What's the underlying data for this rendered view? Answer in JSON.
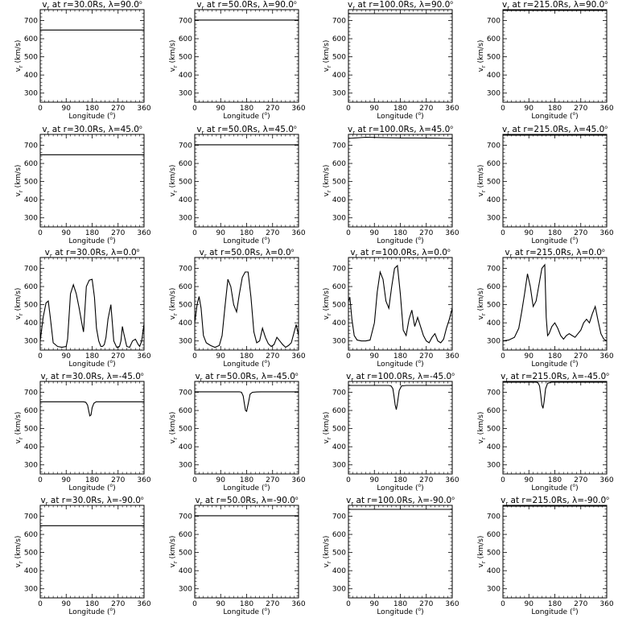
{
  "chart_data": [
    {
      "type": "line",
      "title": "v_r at r=30.0Rs, λ=90.0°",
      "r": "30.0Rs",
      "lat": "90.0°",
      "xlabel": "Longitude (°)",
      "ylabel": "v_r (km/s)",
      "xlim": [
        0,
        360
      ],
      "ylim": [
        250,
        760
      ],
      "xticks": [
        0,
        90,
        180,
        270,
        360
      ],
      "yticks": [
        300,
        400,
        500,
        600,
        700
      ],
      "x": [
        0,
        360
      ],
      "y": [
        648,
        648
      ]
    },
    {
      "type": "line",
      "title": "v_r at r=50.0Rs, λ=90.0°",
      "r": "50.0Rs",
      "lat": "90.0°",
      "xlabel": "Longitude (°)",
      "ylabel": "v_r (km/s)",
      "xlim": [
        0,
        360
      ],
      "ylim": [
        250,
        760
      ],
      "xticks": [
        0,
        90,
        180,
        270,
        360
      ],
      "yticks": [
        300,
        400,
        500,
        600,
        700
      ],
      "x": [
        0,
        360
      ],
      "y": [
        703,
        703
      ]
    },
    {
      "type": "line",
      "title": "v_r at r=100.0Rs, λ=90.0°",
      "r": "100.0Rs",
      "lat": "90.0°",
      "xlabel": "Longitude (°)",
      "ylabel": "v_r (km/s)",
      "xlim": [
        0,
        360
      ],
      "ylim": [
        250,
        760
      ],
      "xticks": [
        0,
        90,
        180,
        270,
        360
      ],
      "yticks": [
        300,
        400,
        500,
        600,
        700
      ],
      "x": [
        0,
        360
      ],
      "y": [
        738,
        738
      ]
    },
    {
      "type": "line",
      "title": "v_r at r=215.0Rs, λ=90.0°",
      "r": "215.0Rs",
      "lat": "90.0°",
      "xlabel": "Longitude (°)",
      "ylabel": "v_r (km/s)",
      "xlim": [
        0,
        360
      ],
      "ylim": [
        250,
        760
      ],
      "xticks": [
        0,
        90,
        180,
        270,
        360
      ],
      "yticks": [
        300,
        400,
        500,
        600,
        700
      ],
      "x": [
        0,
        360
      ],
      "y": [
        756,
        756
      ]
    },
    {
      "type": "line",
      "title": "v_r at r=30.0Rs, λ=45.0°",
      "r": "30.0Rs",
      "lat": "45.0°",
      "xlabel": "Longitude (°)",
      "ylabel": "v_r (km/s)",
      "xlim": [
        0,
        360
      ],
      "ylim": [
        250,
        760
      ],
      "xticks": [
        0,
        90,
        180,
        270,
        360
      ],
      "yticks": [
        300,
        400,
        500,
        600,
        700
      ],
      "x": [
        0,
        360
      ],
      "y": [
        648,
        648
      ]
    },
    {
      "type": "line",
      "title": "v_r at r=50.0Rs, λ=45.0°",
      "r": "50.0Rs",
      "lat": "45.0°",
      "xlabel": "Longitude (°)",
      "ylabel": "v_r (km/s)",
      "xlim": [
        0,
        360
      ],
      "ylim": [
        250,
        760
      ],
      "xticks": [
        0,
        90,
        180,
        270,
        360
      ],
      "yticks": [
        300,
        400,
        500,
        600,
        700
      ],
      "x": [
        0,
        360
      ],
      "y": [
        703,
        703
      ]
    },
    {
      "type": "line",
      "title": "v_r at r=100.0Rs, λ=45.0°",
      "r": "100.0Rs",
      "lat": "45.0°",
      "xlabel": "Longitude (°)",
      "ylabel": "v_r (km/s)",
      "xlim": [
        0,
        360
      ],
      "ylim": [
        250,
        760
      ],
      "xticks": [
        0,
        90,
        180,
        270,
        360
      ],
      "yticks": [
        300,
        400,
        500,
        600,
        700
      ],
      "x": [
        0,
        60,
        120,
        180,
        240,
        300,
        360
      ],
      "y": [
        738,
        744,
        742,
        740,
        740,
        739,
        738
      ]
    },
    {
      "type": "line",
      "title": "v_r at r=215.0Rs, λ=45.0°",
      "r": "215.0Rs",
      "lat": "45.0°",
      "xlabel": "Longitude (°)",
      "ylabel": "v_r (km/s)",
      "xlim": [
        0,
        360
      ],
      "ylim": [
        250,
        760
      ],
      "xticks": [
        0,
        90,
        180,
        270,
        360
      ],
      "yticks": [
        300,
        400,
        500,
        600,
        700
      ],
      "x": [
        0,
        360
      ],
      "y": [
        756,
        756
      ]
    },
    {
      "type": "line",
      "title": "v_r at r=30.0Rs, λ=0.0°",
      "r": "30.0Rs",
      "lat": "0.0°",
      "xlabel": "Longitude (°)",
      "ylabel": "v_r (km/s)",
      "xlim": [
        0,
        360
      ],
      "ylim": [
        250,
        760
      ],
      "xticks": [
        0,
        90,
        180,
        270,
        360
      ],
      "yticks": [
        300,
        400,
        500,
        600,
        700
      ],
      "x": [
        0,
        10,
        20,
        28,
        35,
        45,
        60,
        75,
        90,
        95,
        105,
        115,
        125,
        135,
        145,
        150,
        160,
        170,
        180,
        188,
        195,
        203,
        210,
        216,
        222,
        228,
        235,
        245,
        255,
        265,
        270,
        275,
        280,
        285,
        290,
        300,
        310,
        320,
        330,
        340,
        345,
        352,
        360
      ],
      "y": [
        300,
        430,
        510,
        520,
        430,
        290,
        270,
        265,
        270,
        310,
        560,
        610,
        560,
        480,
        390,
        350,
        600,
        635,
        640,
        540,
        370,
        300,
        270,
        270,
        280,
        320,
        420,
        500,
        300,
        265,
        265,
        270,
        300,
        380,
        340,
        270,
        265,
        300,
        310,
        280,
        270,
        300,
        395
      ]
    },
    {
      "type": "line",
      "title": "v_r at r=50.0Rs, λ=0.0°",
      "r": "50.0Rs",
      "lat": "0.0°",
      "xlabel": "Longitude (°)",
      "ylabel": "v_r (km/s)",
      "xlim": [
        0,
        360
      ],
      "ylim": [
        250,
        760
      ],
      "xticks": [
        0,
        90,
        180,
        270,
        360
      ],
      "yticks": [
        300,
        400,
        500,
        600,
        700
      ],
      "x": [
        0,
        8,
        15,
        22,
        30,
        40,
        55,
        70,
        85,
        95,
        105,
        115,
        125,
        135,
        145,
        155,
        165,
        175,
        185,
        195,
        205,
        215,
        225,
        235,
        245,
        255,
        265,
        275,
        285,
        295,
        305,
        315,
        325,
        335,
        345,
        352,
        360
      ],
      "y": [
        400,
        500,
        545,
        480,
        330,
        290,
        275,
        265,
        275,
        330,
        490,
        640,
        600,
        500,
        460,
        560,
        650,
        680,
        680,
        540,
        350,
        290,
        300,
        370,
        320,
        285,
        270,
        280,
        320,
        300,
        280,
        265,
        275,
        290,
        350,
        390,
        330
      ]
    },
    {
      "type": "line",
      "title": "v_r at r=100.0Rs, λ=0.0°",
      "r": "100.0Rs",
      "lat": "0.0°",
      "xlabel": "Longitude (°)",
      "ylabel": "v_r (km/s)",
      "xlim": [
        0,
        360
      ],
      "ylim": [
        250,
        760
      ],
      "xticks": [
        0,
        90,
        180,
        270,
        360
      ],
      "yticks": [
        300,
        400,
        500,
        600,
        700
      ],
      "x": [
        0,
        5,
        12,
        20,
        30,
        45,
        60,
        75,
        90,
        100,
        110,
        120,
        130,
        140,
        150,
        160,
        170,
        180,
        190,
        200,
        210,
        220,
        230,
        240,
        250,
        260,
        270,
        280,
        290,
        300,
        310,
        320,
        330,
        340,
        350,
        360
      ],
      "y": [
        520,
        540,
        420,
        330,
        305,
        300,
        300,
        305,
        400,
        570,
        680,
        640,
        520,
        480,
        600,
        700,
        715,
        560,
        360,
        330,
        420,
        470,
        380,
        430,
        380,
        330,
        300,
        290,
        320,
        340,
        300,
        290,
        310,
        370,
        420,
        480
      ]
    },
    {
      "type": "line",
      "title": "v_r at r=215.0Rs, λ=0.0°",
      "r": "215.0Rs",
      "lat": "0.0°",
      "xlabel": "Longitude (°)",
      "ylabel": "v_r (km/s)",
      "xlim": [
        0,
        360
      ],
      "ylim": [
        250,
        760
      ],
      "xticks": [
        0,
        90,
        180,
        270,
        360
      ],
      "yticks": [
        300,
        400,
        500,
        600,
        700
      ],
      "x": [
        0,
        20,
        40,
        55,
        65,
        75,
        85,
        95,
        105,
        115,
        125,
        135,
        145,
        150,
        155,
        160,
        170,
        180,
        190,
        200,
        210,
        220,
        230,
        240,
        250,
        260,
        270,
        280,
        290,
        300,
        310,
        320,
        330,
        340,
        350,
        360
      ],
      "y": [
        300,
        305,
        320,
        370,
        460,
        560,
        670,
        600,
        490,
        520,
        610,
        700,
        720,
        430,
        330,
        340,
        380,
        400,
        370,
        330,
        310,
        330,
        340,
        330,
        320,
        340,
        360,
        400,
        420,
        400,
        450,
        490,
        410,
        340,
        310,
        300
      ]
    },
    {
      "type": "line",
      "title": "v_r at r=30.0Rs, λ=-45.0°",
      "r": "30.0Rs",
      "lat": "-45.0°",
      "xlabel": "Longitude (°)",
      "ylabel": "v_r (km/s)",
      "xlim": [
        0,
        360
      ],
      "ylim": [
        250,
        760
      ],
      "xticks": [
        0,
        90,
        180,
        270,
        360
      ],
      "yticks": [
        300,
        400,
        500,
        600,
        700
      ],
      "x": [
        0,
        150,
        158,
        164,
        168,
        172,
        176,
        180,
        186,
        194,
        210,
        360
      ],
      "y": [
        648,
        648,
        645,
        630,
        600,
        570,
        575,
        615,
        640,
        648,
        648,
        648
      ]
    },
    {
      "type": "line",
      "title": "v_r at r=50.0Rs, λ=-45.0°",
      "r": "50.0Rs",
      "lat": "-45.0°",
      "xlabel": "Longitude (°)",
      "ylabel": "v_r (km/s)",
      "xlim": [
        0,
        360
      ],
      "ylim": [
        250,
        760
      ],
      "xticks": [
        0,
        90,
        180,
        270,
        360
      ],
      "yticks": [
        300,
        400,
        500,
        600,
        700
      ],
      "x": [
        0,
        155,
        162,
        168,
        172,
        176,
        180,
        186,
        192,
        200,
        215,
        230,
        360
      ],
      "y": [
        703,
        703,
        700,
        680,
        640,
        600,
        595,
        640,
        690,
        700,
        702,
        703,
        703
      ]
    },
    {
      "type": "line",
      "title": "v_r at r=100.0Rs, λ=-45.0°",
      "r": "100.0Rs",
      "lat": "-45.0°",
      "xlabel": "Longitude (°)",
      "ylabel": "v_r (km/s)",
      "xlim": [
        0,
        360
      ],
      "ylim": [
        250,
        760
      ],
      "xticks": [
        0,
        90,
        180,
        270,
        360
      ],
      "yticks": [
        300,
        400,
        500,
        600,
        700
      ],
      "x": [
        0,
        140,
        148,
        154,
        158,
        162,
        166,
        170,
        176,
        184,
        200,
        360
      ],
      "y": [
        738,
        738,
        735,
        720,
        680,
        630,
        605,
        640,
        710,
        735,
        738,
        738
      ]
    },
    {
      "type": "line",
      "title": "v_r at r=215.0Rs, λ=-45.0°",
      "r": "215.0Rs",
      "lat": "-45.0°",
      "xlabel": "Longitude (°)",
      "ylabel": "v_r (km/s)",
      "xlim": [
        0,
        360
      ],
      "ylim": [
        250,
        760
      ],
      "xticks": [
        0,
        90,
        180,
        270,
        360
      ],
      "yticks": [
        300,
        400,
        500,
        600,
        700
      ],
      "x": [
        0,
        115,
        122,
        127,
        131,
        135,
        139,
        143,
        148,
        155,
        170,
        360
      ],
      "y": [
        756,
        756,
        752,
        735,
        690,
        630,
        612,
        650,
        720,
        750,
        756,
        756
      ]
    },
    {
      "type": "line",
      "title": "v_r at r=30.0Rs, λ=-90.0°",
      "r": "30.0Rs",
      "lat": "-90.0°",
      "xlabel": "Longitude (°)",
      "ylabel": "v_r (km/s)",
      "xlim": [
        0,
        360
      ],
      "ylim": [
        250,
        760
      ],
      "xticks": [
        0,
        90,
        180,
        270,
        360
      ],
      "yticks": [
        300,
        400,
        500,
        600,
        700
      ],
      "x": [
        0,
        360
      ],
      "y": [
        648,
        648
      ]
    },
    {
      "type": "line",
      "title": "v_r at r=50.0Rs, λ=-90.0°",
      "r": "50.0Rs",
      "lat": "-90.0°",
      "xlabel": "Longitude (°)",
      "ylabel": "v_r (km/s)",
      "xlim": [
        0,
        360
      ],
      "ylim": [
        250,
        760
      ],
      "xticks": [
        0,
        90,
        180,
        270,
        360
      ],
      "yticks": [
        300,
        400,
        500,
        600,
        700
      ],
      "x": [
        0,
        360
      ],
      "y": [
        703,
        703
      ]
    },
    {
      "type": "line",
      "title": "v_r at r=100.0Rs, λ=-90.0°",
      "r": "100.0Rs",
      "lat": "-90.0°",
      "xlabel": "Longitude (°)",
      "ylabel": "v_r (km/s)",
      "xlim": [
        0,
        360
      ],
      "ylim": [
        250,
        760
      ],
      "xticks": [
        0,
        90,
        180,
        270,
        360
      ],
      "yticks": [
        300,
        400,
        500,
        600,
        700
      ],
      "x": [
        0,
        360
      ],
      "y": [
        738,
        738
      ]
    },
    {
      "type": "line",
      "title": "v_r at r=215.0Rs, λ=-90.0°",
      "r": "215.0Rs",
      "lat": "-90.0°",
      "xlabel": "Longitude (°)",
      "ylabel": "v_r (km/s)",
      "xlim": [
        0,
        360
      ],
      "ylim": [
        250,
        760
      ],
      "xticks": [
        0,
        90,
        180,
        270,
        360
      ],
      "yticks": [
        300,
        400,
        500,
        600,
        700
      ],
      "x": [
        0,
        360
      ],
      "y": [
        756,
        756
      ]
    }
  ]
}
